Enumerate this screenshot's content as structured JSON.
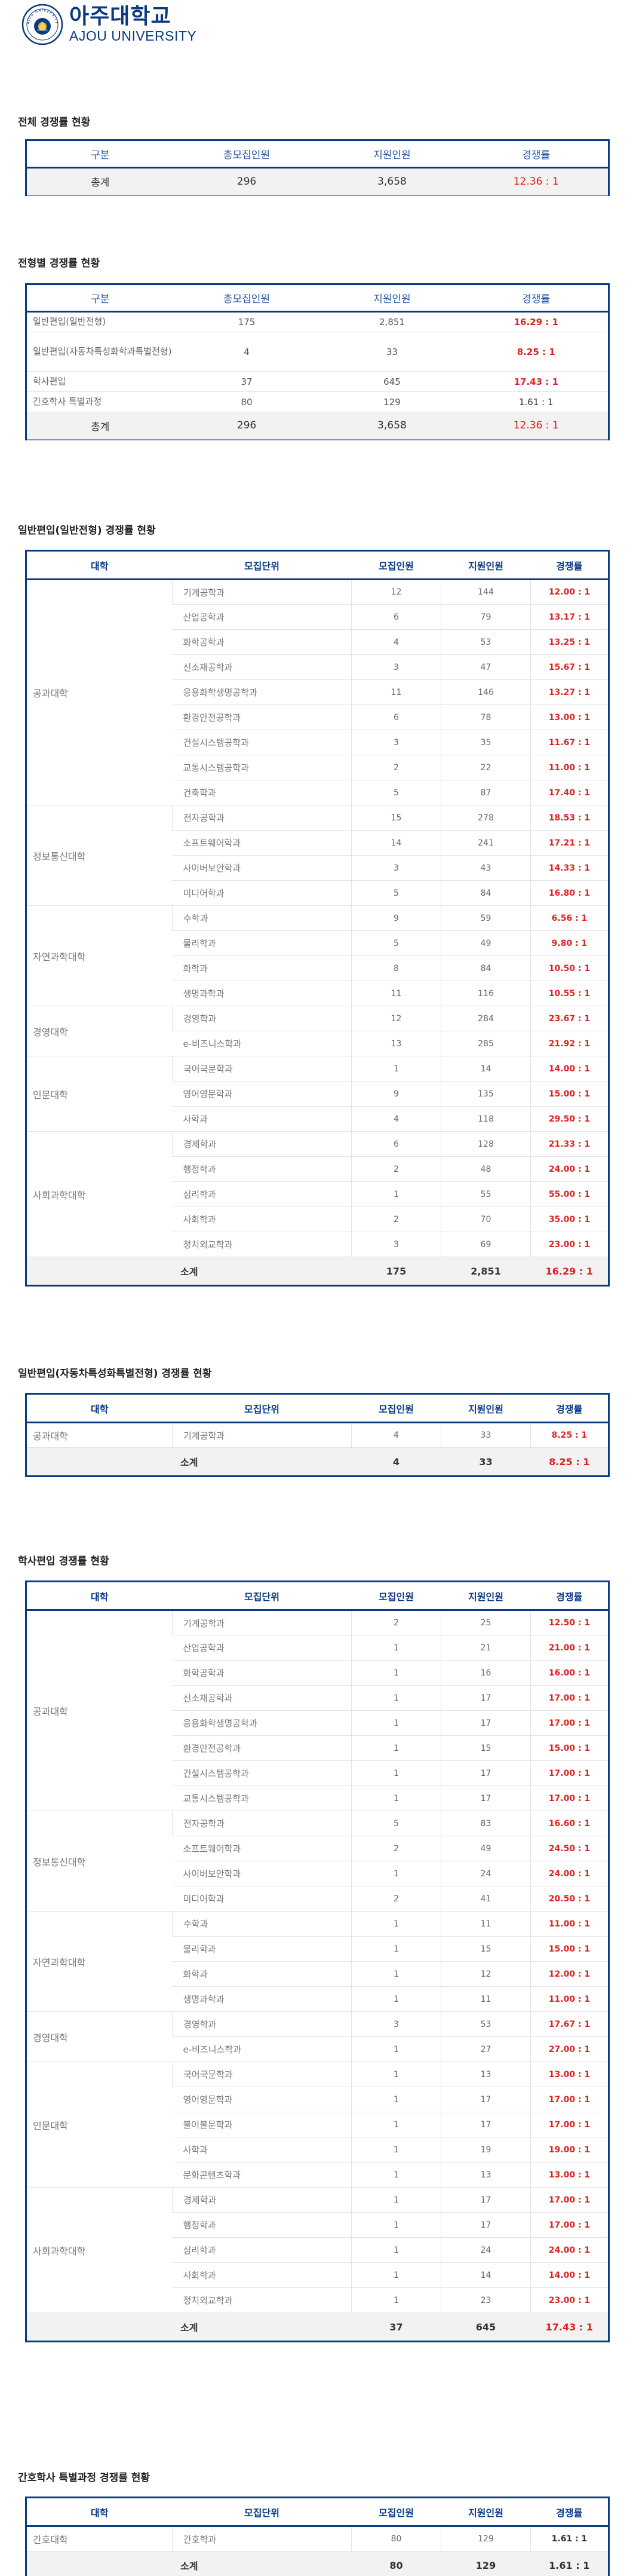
{
  "brand": {
    "name_ko": "아주대학교",
    "name_en": "AJOU UNIVERSITY",
    "seal_text": "AJOU UNIVERSITY",
    "color": "#0a3a82",
    "accent_red": "#e02020"
  },
  "section_overall": {
    "title": "전체 경쟁률 현황",
    "headers": [
      "구분",
      "총모집인원",
      "지원인원",
      "경쟁률"
    ],
    "total": {
      "label": "총계",
      "quota": "296",
      "applicants": "3,658",
      "ratio": "12.36 : 1"
    }
  },
  "section_type": {
    "title": "전형별 경쟁률 현황",
    "headers": [
      "구분",
      "총모집인원",
      "지원인원",
      "경쟁률"
    ],
    "rows": [
      {
        "label": "일반편입(일반전형)",
        "quota": "175",
        "applicants": "2,851",
        "ratio": "16.29 : 1"
      },
      {
        "label": "일반편입(자동차특성화학과특별전형)",
        "quota": "4",
        "applicants": "33",
        "ratio": "8.25 : 1"
      },
      {
        "label": "학사편입",
        "quota": "37",
        "applicants": "645",
        "ratio": "17.43 : 1"
      },
      {
        "label": "간호학사 특별과정",
        "quota": "80",
        "applicants": "129",
        "ratio": "1.61 : 1"
      }
    ],
    "total": {
      "label": "총계",
      "quota": "296",
      "applicants": "3,658",
      "ratio": "12.36 : 1"
    }
  },
  "section_general": {
    "title": "일반편입(일반전형) 경쟁률 현황",
    "headers": [
      "대학",
      "모집단위",
      "모집인원",
      "지원인원",
      "경쟁률"
    ],
    "colleges": [
      {
        "name": "공과대학",
        "rows": [
          [
            "기계공학과",
            "12",
            "144",
            "12.00 : 1"
          ],
          [
            "산업공학과",
            "6",
            "79",
            "13.17 : 1"
          ],
          [
            "화학공학과",
            "4",
            "53",
            "13.25 : 1"
          ],
          [
            "신소재공학과",
            "3",
            "47",
            "15.67 : 1"
          ],
          [
            "응용화학생명공학과",
            "11",
            "146",
            "13.27 : 1"
          ],
          [
            "환경안전공학과",
            "6",
            "78",
            "13.00 : 1"
          ],
          [
            "건설시스템공학과",
            "3",
            "35",
            "11.67 : 1"
          ],
          [
            "교통시스템공학과",
            "2",
            "22",
            "11.00 : 1"
          ],
          [
            "건축학과",
            "5",
            "87",
            "17.40 : 1"
          ]
        ]
      },
      {
        "name": "정보통신대학",
        "rows": [
          [
            "전자공학과",
            "15",
            "278",
            "18.53 : 1"
          ],
          [
            "소프트웨어학과",
            "14",
            "241",
            "17.21 : 1"
          ],
          [
            "사이버보안학과",
            "3",
            "43",
            "14.33 : 1"
          ],
          [
            "미디어학과",
            "5",
            "84",
            "16.80 : 1"
          ]
        ]
      },
      {
        "name": "자연과학대학",
        "rows": [
          [
            "수학과",
            "9",
            "59",
            "6.56 : 1"
          ],
          [
            "물리학과",
            "5",
            "49",
            "9.80 : 1"
          ],
          [
            "화학과",
            "8",
            "84",
            "10.50 : 1"
          ],
          [
            "생명과학과",
            "11",
            "116",
            "10.55 : 1"
          ]
        ]
      },
      {
        "name": "경영대학",
        "rows": [
          [
            "경영학과",
            "12",
            "284",
            "23.67 : 1"
          ],
          [
            "e-비즈니스학과",
            "13",
            "285",
            "21.92 : 1"
          ]
        ]
      },
      {
        "name": "인문대학",
        "rows": [
          [
            "국어국문학과",
            "1",
            "14",
            "14.00 : 1"
          ],
          [
            "영어영문학과",
            "9",
            "135",
            "15.00 : 1"
          ],
          [
            "사학과",
            "4",
            "118",
            "29.50 : 1"
          ]
        ]
      },
      {
        "name": "사회과학대학",
        "rows": [
          [
            "경제학과",
            "6",
            "128",
            "21.33 : 1"
          ],
          [
            "행정학과",
            "2",
            "48",
            "24.00 : 1"
          ],
          [
            "심리학과",
            "1",
            "55",
            "55.00 : 1"
          ],
          [
            "사회학과",
            "2",
            "70",
            "35.00 : 1"
          ],
          [
            "정치외교학과",
            "3",
            "69",
            "23.00 : 1"
          ]
        ]
      }
    ],
    "total": {
      "label": "소계",
      "quota": "175",
      "applicants": "2,851",
      "ratio": "16.29 : 1"
    }
  },
  "section_auto": {
    "title": "일반편입(자동차특성화특별전형) 경쟁률 현황",
    "headers": [
      "대학",
      "모집단위",
      "모집인원",
      "지원인원",
      "경쟁률"
    ],
    "colleges": [
      {
        "name": "공과대학",
        "rows": [
          [
            "기계공학과",
            "4",
            "33",
            "8.25 : 1"
          ]
        ]
      }
    ],
    "total": {
      "label": "소계",
      "quota": "4",
      "applicants": "33",
      "ratio": "8.25 : 1"
    }
  },
  "section_bachelor": {
    "title": "학사편입 경쟁률 현황",
    "headers": [
      "대학",
      "모집단위",
      "모집인원",
      "지원인원",
      "경쟁률"
    ],
    "colleges": [
      {
        "name": "공과대학",
        "rows": [
          [
            "기계공학과",
            "2",
            "25",
            "12.50 : 1"
          ],
          [
            "산업공학과",
            "1",
            "21",
            "21.00 : 1"
          ],
          [
            "화학공학과",
            "1",
            "16",
            "16.00 : 1"
          ],
          [
            "신소재공학과",
            "1",
            "17",
            "17.00 : 1"
          ],
          [
            "응용화학생명공학과",
            "1",
            "17",
            "17.00 : 1"
          ],
          [
            "환경안전공학과",
            "1",
            "15",
            "15.00 : 1"
          ],
          [
            "건설시스템공학과",
            "1",
            "17",
            "17.00 : 1"
          ],
          [
            "교통시스템공학과",
            "1",
            "17",
            "17.00 : 1"
          ]
        ]
      },
      {
        "name": "정보통신대학",
        "rows": [
          [
            "전자공학과",
            "5",
            "83",
            "16.60 : 1"
          ],
          [
            "소프트웨어학과",
            "2",
            "49",
            "24.50 : 1"
          ],
          [
            "사이버보안학과",
            "1",
            "24",
            "24.00 : 1"
          ],
          [
            "미디어학과",
            "2",
            "41",
            "20.50 : 1"
          ]
        ]
      },
      {
        "name": "자연과학대학",
        "rows": [
          [
            "수학과",
            "1",
            "11",
            "11.00 : 1"
          ],
          [
            "물리학과",
            "1",
            "15",
            "15.00 : 1"
          ],
          [
            "화학과",
            "1",
            "12",
            "12.00 : 1"
          ],
          [
            "생명과학과",
            "1",
            "11",
            "11.00 : 1"
          ]
        ]
      },
      {
        "name": "경영대학",
        "rows": [
          [
            "경영학과",
            "3",
            "53",
            "17.67 : 1"
          ],
          [
            "e-비즈니스학과",
            "1",
            "27",
            "27.00 : 1"
          ]
        ]
      },
      {
        "name": "인문대학",
        "rows": [
          [
            "국어국문학과",
            "1",
            "13",
            "13.00 : 1"
          ],
          [
            "영어영문학과",
            "1",
            "17",
            "17.00 : 1"
          ],
          [
            "불어불문학과",
            "1",
            "17",
            "17.00 : 1"
          ],
          [
            "사학과",
            "1",
            "19",
            "19.00 : 1"
          ],
          [
            "문화콘텐츠학과",
            "1",
            "13",
            "13.00 : 1"
          ]
        ]
      },
      {
        "name": "사회과학대학",
        "rows": [
          [
            "경제학과",
            "1",
            "17",
            "17.00 : 1"
          ],
          [
            "행정학과",
            "1",
            "17",
            "17.00 : 1"
          ],
          [
            "심리학과",
            "1",
            "24",
            "24.00 : 1"
          ],
          [
            "사회학과",
            "1",
            "14",
            "14.00 : 1"
          ],
          [
            "정치외교학과",
            "1",
            "23",
            "23.00 : 1"
          ]
        ]
      }
    ],
    "total": {
      "label": "소계",
      "quota": "37",
      "applicants": "645",
      "ratio": "17.43 : 1"
    }
  },
  "section_nursing": {
    "title": "간호학사 특별과정 경쟁률 현황",
    "headers": [
      "대학",
      "모집단위",
      "모집인원",
      "지원인원",
      "경쟁률"
    ],
    "colleges": [
      {
        "name": "간호대학",
        "rows": [
          [
            "간호학과",
            "80",
            "129",
            "1.61 : 1"
          ]
        ]
      }
    ],
    "total": {
      "label": "소계",
      "quota": "80",
      "applicants": "129",
      "ratio": "1.61 : 1"
    }
  }
}
